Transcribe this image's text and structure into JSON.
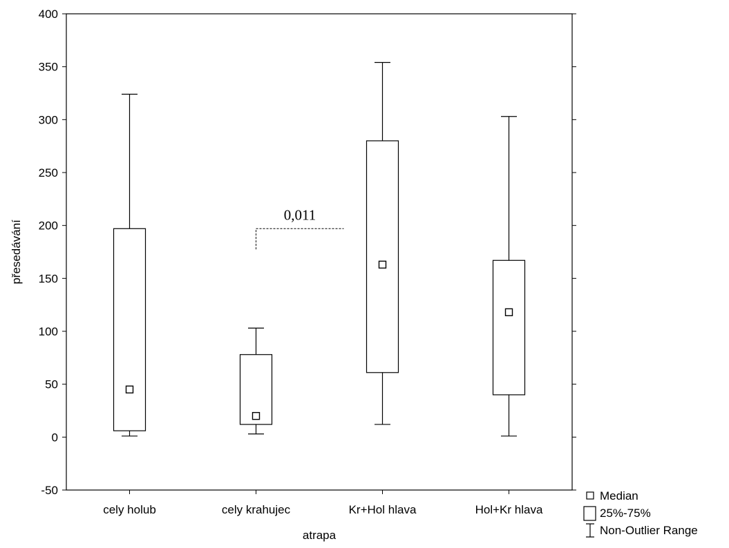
{
  "chart_data": {
    "type": "boxplot",
    "xlabel": "atrapa",
    "ylabel": "přesedávání",
    "ylim": [
      -50,
      400
    ],
    "yticks": [
      -50,
      0,
      50,
      100,
      150,
      200,
      250,
      300,
      350,
      400
    ],
    "categories": [
      "cely holub",
      "cely krahujec",
      "Kr+Hol hlava",
      "Hol+Kr hlava"
    ],
    "boxes": [
      {
        "category": "cely holub",
        "whisker_low": 1,
        "q1": 6,
        "median": 45,
        "q3": 197,
        "whisker_high": 324
      },
      {
        "category": "cely krahujec",
        "whisker_low": 3,
        "q1": 12,
        "median": 20,
        "q3": 78,
        "whisker_high": 103
      },
      {
        "category": "Kr+Hol hlava",
        "whisker_low": 12,
        "q1": 61,
        "median": 163,
        "q3": 280,
        "whisker_high": 354
      },
      {
        "category": "Hol+Kr hlava",
        "whisker_low": 1,
        "q1": 40,
        "median": 118,
        "q3": 167,
        "whisker_high": 303
      }
    ],
    "annotation": {
      "text": "0,011",
      "from": "cely krahujec",
      "to": "Kr+Hol hlava",
      "y": 197
    },
    "legend": {
      "position": "bottom-right",
      "items": [
        {
          "symbol": "median-marker",
          "label": "Median"
        },
        {
          "symbol": "box",
          "label": "25%-75%"
        },
        {
          "symbol": "whisker",
          "label": "Non-Outlier Range"
        }
      ]
    },
    "grid": false
  }
}
